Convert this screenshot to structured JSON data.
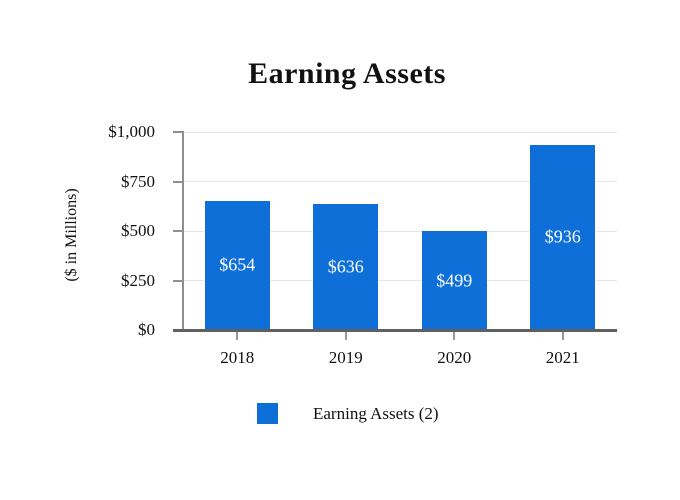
{
  "page": {
    "background_color": "#ffffff"
  },
  "chart_data": {
    "type": "bar",
    "title": "Earning Assets",
    "ylabel": "($ in Millions)",
    "xlabel": "",
    "categories": [
      "2018",
      "2019",
      "2020",
      "2021"
    ],
    "values": [
      654,
      636,
      499,
      936
    ],
    "bar_labels": [
      "$654",
      "$636",
      "$499",
      "$936"
    ],
    "series_name": "Earning Assets (2)",
    "legend_label": "Earning Assets (2)",
    "legend_position": "bottom",
    "ylim": [
      0,
      1000
    ],
    "yticks": [
      {
        "value": 0,
        "label": "$0"
      },
      {
        "value": 250,
        "label": "$250"
      },
      {
        "value": 500,
        "label": "$500"
      },
      {
        "value": 750,
        "label": "$750"
      },
      {
        "value": 1000,
        "label": "$1,000"
      }
    ],
    "grid": true,
    "bar_color": "#0D6FD7",
    "bar_label_color": "#FFFFFF",
    "gridline_color": "#E7E7E7",
    "axis_color": "#8F8F8F",
    "baseline_color": "#606060",
    "text_color": "#111111"
  }
}
